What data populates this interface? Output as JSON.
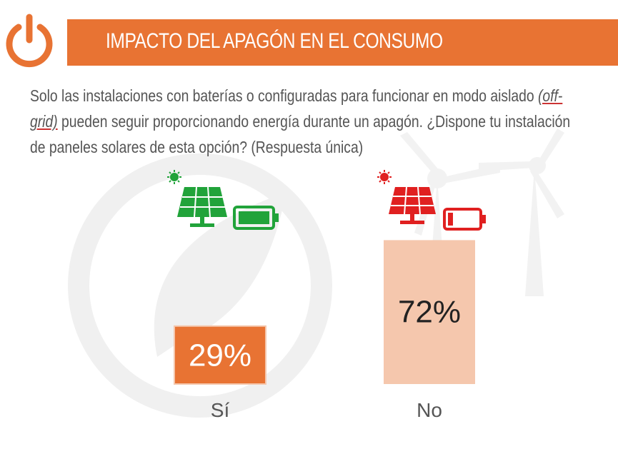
{
  "header": {
    "title": "IMPACTO DEL APAGÓN EN EL CONSUMO"
  },
  "question": {
    "text_before": "Solo las instalaciones con baterías o configuradas para funcionar en modo aislado ",
    "text_italic": "(off-grid)",
    "text_after": " pueden seguir proporcionando energía durante un apagón. ¿Dispone tu instalación de paneles solares de esta opción? (Respuesta única)"
  },
  "colors": {
    "brand_orange": "#e87333",
    "bar_si": "#e87333",
    "bar_no": "#f5c7ad",
    "icon_green": "#21a33a",
    "icon_red": "#e02020",
    "decor_gray": "#f0f0f0"
  },
  "icons": {
    "power": "power-icon",
    "solar_panel_si": "solar-panel-icon",
    "battery_si": "battery-full-icon",
    "solar_panel_no": "solar-panel-icon",
    "battery_no": "battery-low-icon",
    "wind_turbine": "wind-turbine-icon",
    "leaf_plug": "leaf-plug-icon"
  },
  "chart_data": {
    "type": "bar",
    "categories": [
      "Sí",
      "No"
    ],
    "values": [
      29,
      72
    ],
    "value_labels": [
      "29%",
      "72%"
    ],
    "ylim": [
      0,
      100
    ],
    "grid": false,
    "legend": "none"
  }
}
